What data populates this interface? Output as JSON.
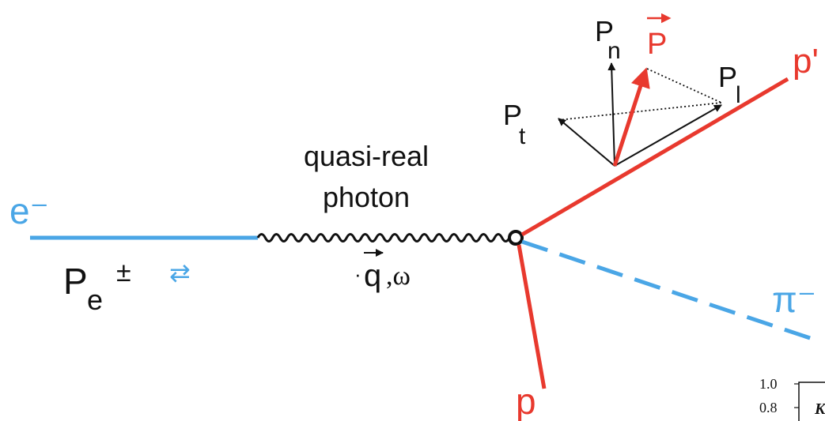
{
  "colors": {
    "electron": "#4aa6e6",
    "proton": "#e8392e",
    "pion": "#4aa6e6",
    "photon": "#111111",
    "polarization_vector": "#e8392e",
    "frame_axes": "#111111"
  },
  "labels": {
    "electron": "e⁻",
    "electron_polarization": "P",
    "electron_polarization_sub": "e",
    "electron_polarization_sup": "±",
    "helicity_flip_icon": "⇄",
    "photon_line1": "quasi-real",
    "photon_line2": "photon",
    "photon_q": "q",
    "photon_omega": ",ω",
    "q_dot": "·",
    "incoming_proton": "p",
    "outgoing_proton": "p'",
    "pion": "π⁻",
    "pol_P": "P",
    "pol_Pn": "P",
    "pol_Pn_sub": "n",
    "pol_Pl": "P",
    "pol_Pl_sub": "l",
    "pol_Pt": "P",
    "pol_Pt_sub": "t"
  },
  "inset_plot": {
    "ytick_top": "1.0",
    "ytick_second": "0.8",
    "label_fragment": "K"
  }
}
